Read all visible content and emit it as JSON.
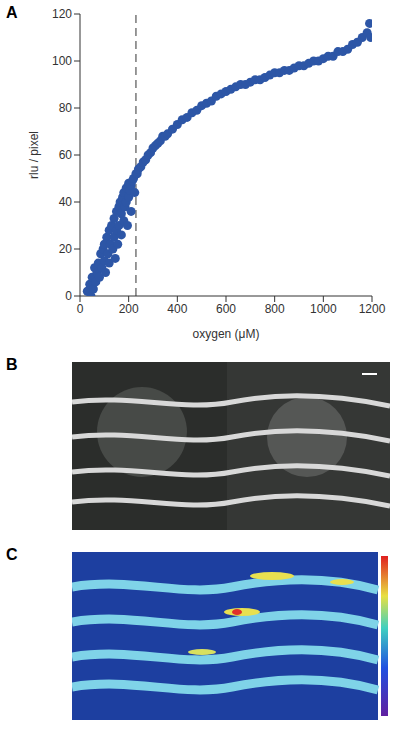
{
  "panel_labels": [
    "A",
    "B",
    "C"
  ],
  "chart_data": {
    "type": "scatter",
    "x_label": "oxygen (μM)",
    "y_label": "rlu / pixel",
    "color": "#2d56a6",
    "marker": "circle",
    "xlim": [
      0,
      1200
    ],
    "xticks": [
      0,
      200,
      400,
      600,
      800,
      1000,
      1200
    ],
    "ylim": [
      0,
      120
    ],
    "yticks": [
      0,
      20,
      40,
      60,
      80,
      100,
      120
    ],
    "vline": 230,
    "x": [
      30,
      40,
      45,
      50,
      55,
      60,
      65,
      70,
      75,
      80,
      85,
      90,
      95,
      100,
      100,
      105,
      110,
      115,
      120,
      120,
      125,
      130,
      135,
      140,
      140,
      145,
      150,
      150,
      155,
      160,
      160,
      165,
      170,
      170,
      175,
      180,
      180,
      185,
      190,
      190,
      195,
      200,
      200,
      205,
      210,
      210,
      215,
      220,
      225,
      230,
      235,
      240,
      250,
      260,
      270,
      280,
      290,
      300,
      310,
      320,
      330,
      340,
      350,
      360,
      380,
      400,
      420,
      440,
      460,
      480,
      500,
      520,
      540,
      560,
      580,
      600,
      620,
      640,
      660,
      680,
      700,
      720,
      740,
      760,
      780,
      800,
      820,
      840,
      860,
      880,
      900,
      920,
      940,
      960,
      980,
      1000,
      1020,
      1040,
      1060,
      1080,
      1100,
      1120,
      1140,
      1160,
      1180,
      1190,
      1195
    ],
    "values": [
      2,
      5,
      0,
      8,
      3,
      12,
      6,
      10,
      14,
      8,
      18,
      12,
      20,
      15,
      22,
      10,
      25,
      18,
      28,
      14,
      22,
      30,
      20,
      33,
      25,
      16,
      36,
      28,
      22,
      38,
      30,
      40,
      35,
      26,
      42,
      44,
      32,
      38,
      46,
      40,
      30,
      48,
      42,
      45,
      47,
      36,
      49,
      50,
      44,
      52,
      52,
      54,
      55,
      57,
      58,
      60,
      61,
      63,
      64,
      65,
      66,
      68,
      68,
      69,
      71,
      73,
      75,
      76,
      78,
      79,
      81,
      82,
      83,
      85,
      86,
      87,
      88,
      89,
      90,
      90,
      91,
      92,
      92,
      93,
      94,
      95,
      95,
      96,
      96,
      97,
      98,
      98,
      99,
      100,
      100,
      101,
      102,
      102,
      104,
      104,
      105,
      107,
      108,
      110,
      112,
      116,
      110
    ]
  }
}
